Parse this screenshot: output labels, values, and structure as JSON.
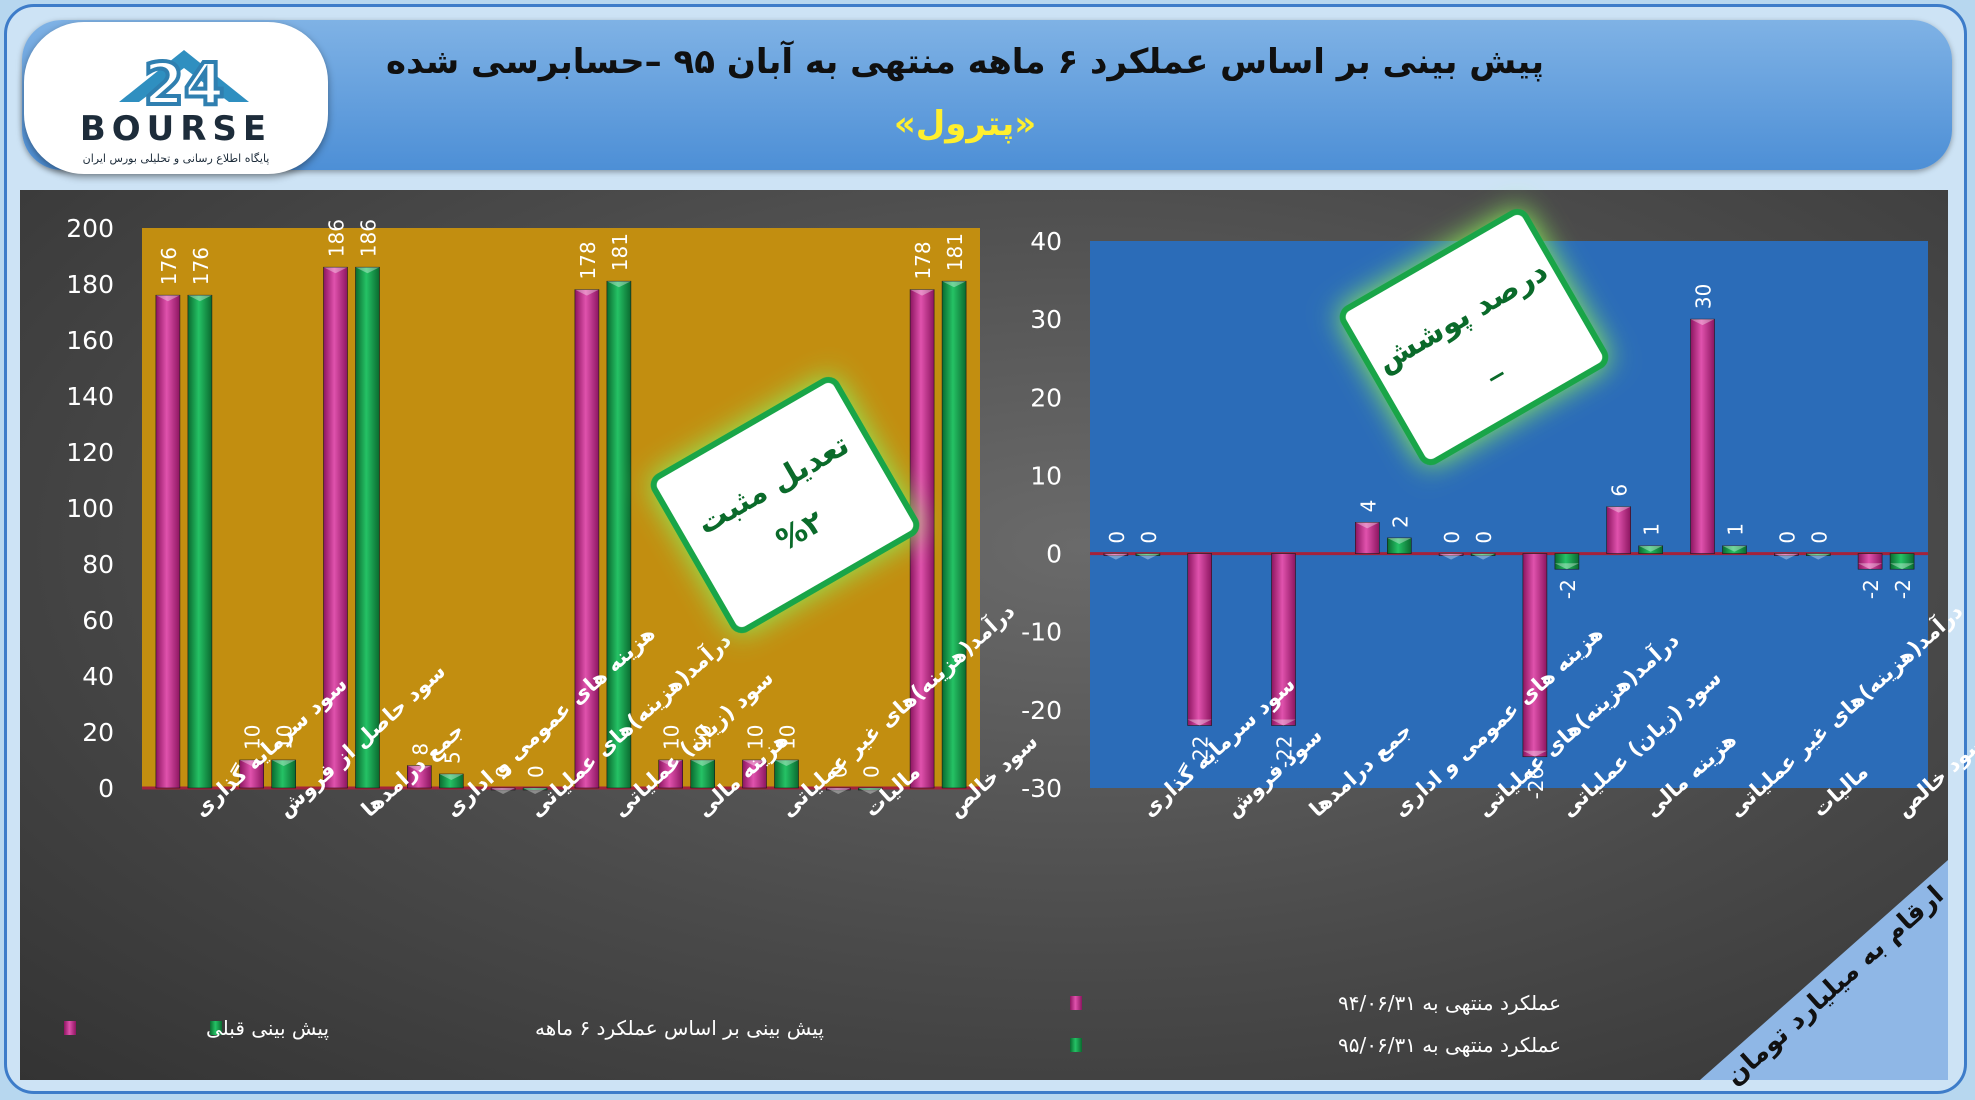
{
  "header": {
    "title": "پیش بینی بر اساس عملکرد ۶ ماهه منتهی به آبان ۹۵ –حسابرسی شده",
    "subtitle": "«پترول»"
  },
  "logo": {
    "text": "BOURSE",
    "number": "24",
    "caption": "پایگاه اطلاع رسانی و تحلیلی بورس ایران"
  },
  "colors": {
    "magenta": "#b3267e",
    "green": "#109447",
    "left_plot_bg": "#c28e10",
    "right_plot_bg": "#2b6cb8",
    "header": "#5b9ad9"
  },
  "left_badge": {
    "line1": "تعدیل مثبت",
    "line2": "%۲"
  },
  "right_badge": {
    "line1": "درصد پوشش",
    "line2": "_"
  },
  "units_note": "ارقام به میلیارد تومان",
  "chart_data": [
    {
      "type": "bar",
      "categories": [
        "سود سرمایه گذاری",
        "سود حاصل از فروش",
        "جمع درامدها",
        "هزینه های عمومی و اداری",
        "درآمد(هزینه)های عملیاتی",
        "سود (زیان) عملیاتی",
        "هزینه مالی",
        "درآمد(هزینه)های غیر عملیاتی",
        "مالیات",
        "سود خالص"
      ],
      "series": [
        {
          "name": "پیش بینی قبلی",
          "values": [
            176,
            10,
            186,
            8,
            0,
            178,
            10,
            10,
            0,
            178
          ]
        },
        {
          "name": "پیش بینی بر اساس عملکرد ۶ ماهه",
          "values": [
            176,
            10,
            186,
            5,
            0,
            181,
            10,
            10,
            0,
            181
          ]
        }
      ],
      "yticks": [
        "0",
        "20",
        "40",
        "60",
        "80",
        "100",
        "120",
        "140",
        "160",
        "180",
        "200"
      ],
      "ylim": [
        0,
        200
      ],
      "grid": false,
      "legend": "bottom"
    },
    {
      "type": "bar",
      "categories": [
        "سود سرمایه گذاری",
        "سود فروش",
        "جمع درامدها",
        "هزینه های عمومی و اداری",
        "درآمد(هزینه)های عملیاتی",
        "سود (زیان) عملیاتی",
        "هزینه مالی",
        "درآمد(هزینه)های غیر عملیاتی",
        "مالیات",
        "سود خالص"
      ],
      "series": [
        {
          "name": "عملکرد منتهی به ۹۴/۰۶/۳۱",
          "values": [
            0,
            -22,
            -22,
            4,
            0,
            -26,
            6,
            30,
            0,
            -2
          ]
        },
        {
          "name": "عملکرد منتهی به ۹۵/۰۶/۳۱",
          "values": [
            0,
            null,
            null,
            2,
            0,
            -2,
            1,
            1,
            0,
            -2
          ]
        }
      ],
      "yticks": [
        "-30",
        "-20",
        "-10",
        "0",
        "10",
        "20",
        "30",
        "40"
      ],
      "ylim": [
        -30,
        40
      ],
      "grid": false,
      "legend": "bottom-left"
    }
  ]
}
